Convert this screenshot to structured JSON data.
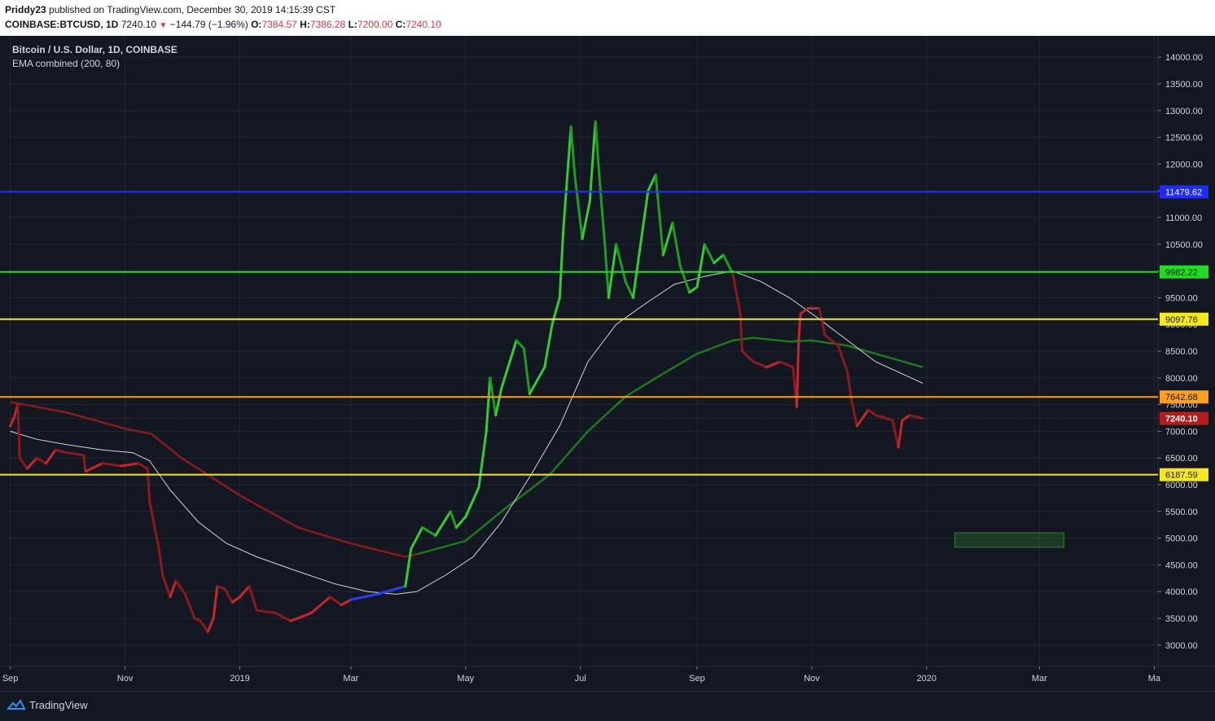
{
  "header": {
    "author": "Priddy23",
    "published": " published on TradingView.com, December 30, 2019 14:15:39 CST",
    "symbol": "COINBASE:BTCUSD, 1D",
    "last": "7240.10",
    "change": "−144.79 (−1.96%)",
    "open_label": "O:",
    "open": "7384.57",
    "high_label": "H:",
    "high": "7386.28",
    "low_label": "L:",
    "low": "7200.00",
    "close_label": "C:",
    "close": "7240.10"
  },
  "legend": {
    "title": "Bitcoin / U.S. Dollar, 1D, COINBASE",
    "indicator": "EMA combined (200, 80)"
  },
  "footer": {
    "brand": "TradingView"
  },
  "colors": {
    "background": "#131722",
    "grid": "#232632",
    "blue_level": "#1e2bff",
    "green_level": "#1fdc1f",
    "yellow_level": "#f5e816",
    "orange_level": "#ff9f1a",
    "price_line": "#b71c1c",
    "ema_fast": "#d8d8d8",
    "ema_slow_red": "#8b1a1a",
    "ema_slow_green": "#1b7a1b"
  },
  "chart_data": {
    "type": "line",
    "series_type": "candlestick",
    "ylim": [
      2600,
      14400
    ],
    "yticks": [
      3000,
      3500,
      4000,
      4500,
      5000,
      5500,
      6000,
      6500,
      7000,
      7500,
      8000,
      8500,
      9000,
      9500,
      10000,
      10500,
      11000,
      11500,
      12000,
      12500,
      13000,
      13500,
      14000
    ],
    "ytick_labels": [
      "3000.00",
      "3500.00",
      "4000.00",
      "4500.00",
      "5000.00",
      "5500.00",
      "6000.00",
      "6500.00",
      "7000.00",
      "7500.00",
      "8000.00",
      "8500.00",
      "9000.00",
      "9500.00",
      "10000.00",
      "10500.00",
      "11000.00",
      "11500.00",
      "12000.00",
      "12500.00",
      "13000.00",
      "13500.00",
      "14000.00"
    ],
    "xticks": [
      {
        "date": "2018-09-01",
        "label": "Sep"
      },
      {
        "date": "2018-11-01",
        "label": "Nov"
      },
      {
        "date": "2019-01-01",
        "label": "2019"
      },
      {
        "date": "2019-03-01",
        "label": "Mar"
      },
      {
        "date": "2019-05-01",
        "label": "May"
      },
      {
        "date": "2019-07-01",
        "label": "Jul"
      },
      {
        "date": "2019-09-01",
        "label": "Sep"
      },
      {
        "date": "2019-11-01",
        "label": "Nov"
      },
      {
        "date": "2020-01-01",
        "label": "2020"
      },
      {
        "date": "2020-03-01",
        "label": "Mar"
      },
      {
        "date": "2020-05-01",
        "label": "Ma"
      }
    ],
    "xlim": [
      "2018-08-30",
      "2020-05-03"
    ],
    "levels": [
      {
        "value": 11479.62,
        "label": "11479.62",
        "color": "#1e2bff",
        "text_color": "#ffffff"
      },
      {
        "value": 9982.22,
        "label": "9982.22",
        "color": "#1fdc1f",
        "text_color": "#131722"
      },
      {
        "value": 9097.76,
        "label": "9097.76",
        "color": "#f5e816",
        "text_color": "#131722"
      },
      {
        "value": 7642.68,
        "label": "7642.68",
        "color": "#ff9f1a",
        "text_color": "#131722"
      },
      {
        "value": 6187.59,
        "label": "6187.59",
        "color": "#f5e816",
        "text_color": "#131722"
      }
    ],
    "last_price": {
      "value": 7240.1,
      "label": "7240.10",
      "color": "#b71c1c"
    },
    "target_box": {
      "x": [
        "2020-01-16",
        "2020-03-14"
      ],
      "y": [
        4830,
        5100
      ]
    },
    "price": [
      [
        "2018-09-01",
        7100
      ],
      [
        "2018-09-03",
        7250
      ],
      [
        "2018-09-05",
        7500
      ],
      [
        "2018-09-06",
        6500
      ],
      [
        "2018-09-10",
        6300
      ],
      [
        "2018-09-15",
        6500
      ],
      [
        "2018-09-20",
        6400
      ],
      [
        "2018-09-25",
        6650
      ],
      [
        "2018-10-01",
        6600
      ],
      [
        "2018-10-10",
        6550
      ],
      [
        "2018-10-11",
        6250
      ],
      [
        "2018-10-20",
        6400
      ],
      [
        "2018-10-30",
        6350
      ],
      [
        "2018-11-08",
        6400
      ],
      [
        "2018-11-13",
        6300
      ],
      [
        "2018-11-14",
        5700
      ],
      [
        "2018-11-19",
        4800
      ],
      [
        "2018-11-21",
        4300
      ],
      [
        "2018-11-25",
        3900
      ],
      [
        "2018-11-28",
        4200
      ],
      [
        "2018-12-03",
        3950
      ],
      [
        "2018-12-08",
        3500
      ],
      [
        "2018-12-11",
        3450
      ],
      [
        "2018-12-15",
        3250
      ],
      [
        "2018-12-18",
        3500
      ],
      [
        "2018-12-20",
        4100
      ],
      [
        "2018-12-24",
        4050
      ],
      [
        "2018-12-28",
        3800
      ],
      [
        "2019-01-01",
        3900
      ],
      [
        "2019-01-06",
        4100
      ],
      [
        "2019-01-10",
        3650
      ],
      [
        "2019-01-20",
        3600
      ],
      [
        "2019-01-28",
        3450
      ],
      [
        "2019-02-08",
        3600
      ],
      [
        "2019-02-18",
        3900
      ],
      [
        "2019-02-24",
        3750
      ],
      [
        "2019-03-01",
        3850
      ],
      [
        "2019-03-15",
        3950
      ],
      [
        "2019-03-30",
        4100
      ],
      [
        "2019-04-02",
        4800
      ],
      [
        "2019-04-08",
        5200
      ],
      [
        "2019-04-15",
        5050
      ],
      [
        "2019-04-23",
        5500
      ],
      [
        "2019-04-26",
        5200
      ],
      [
        "2019-05-01",
        5400
      ],
      [
        "2019-05-08",
        5950
      ],
      [
        "2019-05-12",
        7000
      ],
      [
        "2019-05-14",
        8000
      ],
      [
        "2019-05-17",
        7300
      ],
      [
        "2019-05-20",
        7800
      ],
      [
        "2019-05-28",
        8700
      ],
      [
        "2019-06-01",
        8550
      ],
      [
        "2019-06-04",
        7700
      ],
      [
        "2019-06-12",
        8200
      ],
      [
        "2019-06-16",
        9000
      ],
      [
        "2019-06-20",
        9500
      ],
      [
        "2019-06-22",
        10800
      ],
      [
        "2019-06-26",
        12700
      ],
      [
        "2019-06-28",
        11800
      ],
      [
        "2019-07-02",
        10600
      ],
      [
        "2019-07-06",
        11300
      ],
      [
        "2019-07-09",
        12800
      ],
      [
        "2019-07-11",
        11800
      ],
      [
        "2019-07-14",
        10500
      ],
      [
        "2019-07-16",
        9500
      ],
      [
        "2019-07-20",
        10500
      ],
      [
        "2019-07-25",
        9800
      ],
      [
        "2019-07-29",
        9500
      ],
      [
        "2019-08-02",
        10500
      ],
      [
        "2019-08-06",
        11500
      ],
      [
        "2019-08-10",
        11800
      ],
      [
        "2019-08-14",
        10300
      ],
      [
        "2019-08-19",
        10900
      ],
      [
        "2019-08-23",
        10100
      ],
      [
        "2019-08-28",
        9600
      ],
      [
        "2019-09-01",
        9700
      ],
      [
        "2019-09-05",
        10500
      ],
      [
        "2019-09-10",
        10150
      ],
      [
        "2019-09-15",
        10300
      ],
      [
        "2019-09-20",
        9950
      ],
      [
        "2019-09-24",
        9200
      ],
      [
        "2019-09-25",
        8500
      ],
      [
        "2019-10-01",
        8300
      ],
      [
        "2019-10-08",
        8200
      ],
      [
        "2019-10-15",
        8300
      ],
      [
        "2019-10-22",
        8200
      ],
      [
        "2019-10-24",
        7450
      ],
      [
        "2019-10-25",
        8700
      ],
      [
        "2019-10-26",
        9200
      ],
      [
        "2019-10-30",
        9300
      ],
      [
        "2019-11-05",
        9300
      ],
      [
        "2019-11-08",
        8800
      ],
      [
        "2019-11-15",
        8600
      ],
      [
        "2019-11-20",
        8100
      ],
      [
        "2019-11-22",
        7600
      ],
      [
        "2019-11-25",
        7100
      ],
      [
        "2019-12-01",
        7400
      ],
      [
        "2019-12-05",
        7300
      ],
      [
        "2019-12-10",
        7250
      ],
      [
        "2019-12-14",
        7200
      ],
      [
        "2019-12-17",
        6700
      ],
      [
        "2019-12-19",
        7200
      ],
      [
        "2019-12-23",
        7300
      ],
      [
        "2019-12-30",
        7240
      ]
    ],
    "ema_fast": [
      [
        "2018-09-01",
        7000
      ],
      [
        "2018-09-15",
        6850
      ],
      [
        "2018-10-01",
        6750
      ],
      [
        "2018-10-20",
        6650
      ],
      [
        "2018-11-05",
        6600
      ],
      [
        "2018-11-14",
        6450
      ],
      [
        "2018-11-25",
        5900
      ],
      [
        "2018-12-10",
        5300
      ],
      [
        "2018-12-25",
        4900
      ],
      [
        "2019-01-10",
        4650
      ],
      [
        "2019-01-30",
        4400
      ],
      [
        "2019-02-20",
        4150
      ],
      [
        "2019-03-10",
        4000
      ],
      [
        "2019-03-25",
        3950
      ],
      [
        "2019-04-05",
        4000
      ],
      [
        "2019-04-20",
        4300
      ],
      [
        "2019-05-05",
        4650
      ],
      [
        "2019-05-20",
        5300
      ],
      [
        "2019-06-05",
        6200
      ],
      [
        "2019-06-20",
        7100
      ],
      [
        "2019-07-05",
        8300
      ],
      [
        "2019-07-20",
        9000
      ],
      [
        "2019-08-05",
        9400
      ],
      [
        "2019-08-20",
        9750
      ],
      [
        "2019-09-05",
        9900
      ],
      [
        "2019-09-20",
        10000
      ],
      [
        "2019-10-05",
        9800
      ],
      [
        "2019-10-20",
        9500
      ],
      [
        "2019-11-05",
        9100
      ],
      [
        "2019-11-20",
        8700
      ],
      [
        "2019-12-05",
        8300
      ],
      [
        "2019-12-30",
        7900
      ]
    ],
    "ema_slow": [
      [
        "2018-09-01",
        7550
      ],
      [
        "2018-10-01",
        7350
      ],
      [
        "2018-11-01",
        7050
      ],
      [
        "2018-11-15",
        6950
      ],
      [
        "2018-12-01",
        6500
      ],
      [
        "2019-01-01",
        5800
      ],
      [
        "2019-02-01",
        5200
      ],
      [
        "2019-03-01",
        4900
      ],
      [
        "2019-03-30",
        4650
      ],
      [
        "2019-04-05",
        4700
      ],
      [
        "2019-05-01",
        4950
      ],
      [
        "2019-05-20",
        5500
      ],
      [
        "2019-06-15",
        6200
      ],
      [
        "2019-07-05",
        7000
      ],
      [
        "2019-07-25",
        7650
      ],
      [
        "2019-08-15",
        8100
      ],
      [
        "2019-09-01",
        8450
      ],
      [
        "2019-09-20",
        8700
      ],
      [
        "2019-10-01",
        8750
      ],
      [
        "2019-10-20",
        8680
      ],
      [
        "2019-11-01",
        8700
      ],
      [
        "2019-11-20",
        8600
      ],
      [
        "2019-12-10",
        8400
      ],
      [
        "2019-12-30",
        8200
      ]
    ]
  }
}
